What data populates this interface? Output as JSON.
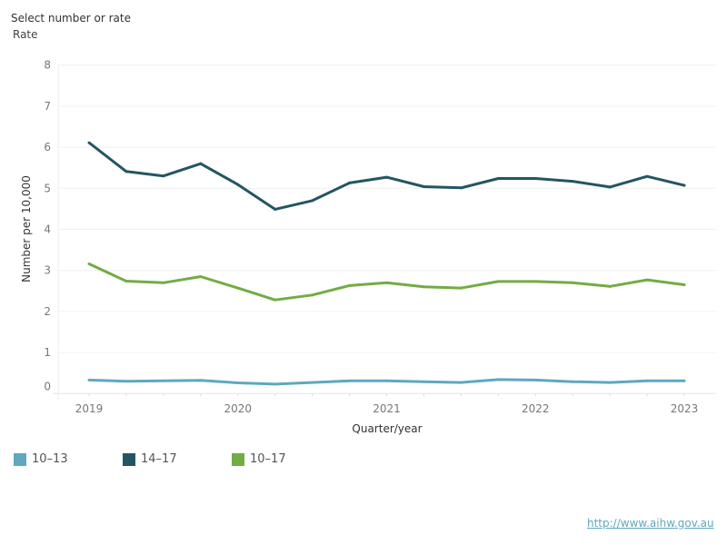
{
  "selector": {
    "label": "Select number or rate",
    "value": "Rate"
  },
  "footer": {
    "link": "http://www.aihw.gov.au"
  },
  "chart_data": {
    "type": "line",
    "xlabel": "Quarter/year",
    "ylabel": "Number per 10,000",
    "ylim": [
      0,
      8
    ],
    "yticks": [
      "0",
      "1",
      "2",
      "3",
      "4",
      "5",
      "6",
      "7",
      "8"
    ],
    "xtick_labels": [
      {
        "index": 0,
        "label": "2019"
      },
      {
        "index": 4,
        "label": "2020"
      },
      {
        "index": 8,
        "label": "2021"
      },
      {
        "index": 12,
        "label": "2022"
      },
      {
        "index": 16,
        "label": "2023"
      }
    ],
    "grid": true,
    "legend_position": "bottom-left",
    "series": [
      {
        "name": "10–13",
        "color": "#5fa8c0",
        "values": [
          0.33,
          0.3,
          0.31,
          0.32,
          0.26,
          0.23,
          0.27,
          0.31,
          0.31,
          0.29,
          0.27,
          0.34,
          0.33,
          0.29,
          0.27,
          0.31,
          0.31
        ]
      },
      {
        "name": "14–17",
        "color": "#245563",
        "values": [
          6.11,
          5.41,
          5.3,
          5.6,
          5.09,
          4.49,
          4.7,
          5.13,
          5.27,
          5.04,
          5.01,
          5.24,
          5.24,
          5.17,
          5.03,
          5.29,
          5.07
        ]
      },
      {
        "name": "10–17",
        "color": "#72ac45",
        "values": [
          3.16,
          2.74,
          2.7,
          2.85,
          2.57,
          2.28,
          2.4,
          2.63,
          2.7,
          2.6,
          2.57,
          2.73,
          2.73,
          2.7,
          2.61,
          2.77,
          2.65
        ]
      }
    ]
  }
}
